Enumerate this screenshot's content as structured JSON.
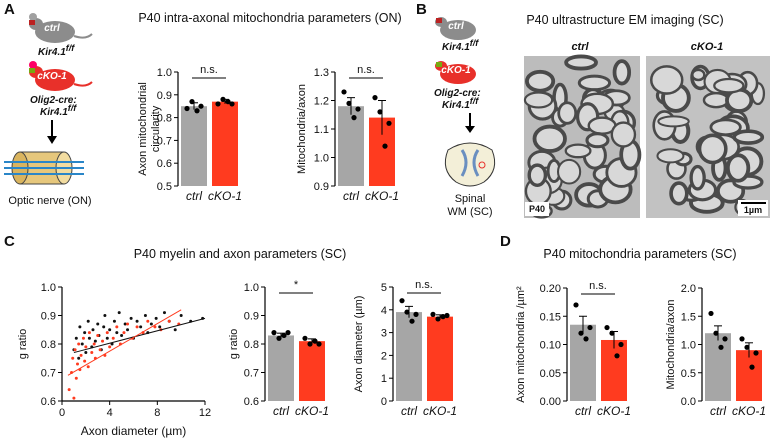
{
  "panel_a": {
    "letter": "A",
    "title": "P40 intra-axonal mitochondria parameters (ON)",
    "ctrl_label": "ctrl",
    "ctrl_genotype": "Kir4.1",
    "ctrl_genotype_sup": "f/f",
    "cko_label": "cKO-1",
    "cko_genotype_1": "Olig2-cre:",
    "cko_genotype_2": "Kir4.1",
    "cko_genotype_sup": "f/f",
    "tissue": "Optic nerve (ON)"
  },
  "panel_b": {
    "letter": "B",
    "title": "P40 ultrastructure EM imaging (SC)",
    "ctrl_label": "ctrl",
    "ctrl_genotype": "Kir4.1",
    "ctrl_genotype_sup": "f/f",
    "cko_label": "cKO-1",
    "cko_genotype_1": "Olig2-cre:",
    "cko_genotype_2": "Kir4.1",
    "cko_genotype_sup": "f/f",
    "tissue_1": "Spinal",
    "tissue_2": "WM (SC)",
    "em_ctrl": "ctrl",
    "em_cko": "cKO-1",
    "em_age": "P40",
    "scale_bar": "1µm"
  },
  "panel_c": {
    "letter": "C",
    "title": "P40 myelin and axon parameters (SC)"
  },
  "panel_d": {
    "letter": "D",
    "title": "P40 mitochondria parameters (SC)"
  },
  "chart_data": [
    {
      "type": "bar",
      "ylabel": [
        "Axon mitochondrial",
        "circularity"
      ],
      "categories": [
        "ctrl",
        "cKO-1"
      ],
      "values": [
        0.85,
        0.87
      ],
      "errors": [
        0.015,
        0.01
      ],
      "points": [
        [
          0.84,
          0.87,
          0.83,
          0.85
        ],
        [
          0.86,
          0.88,
          0.87,
          0.86
        ]
      ],
      "colors": [
        "#a6a6a6",
        "#ff3b1f"
      ],
      "ylim": [
        0.5,
        1
      ],
      "yticks": [
        0.5,
        0.6,
        0.7,
        0.8,
        0.9,
        {
          "value": 1,
          "label": "1.0"
        }
      ],
      "annotation": "n.s."
    },
    {
      "type": "bar",
      "ylabel": [
        "Mitochondria/axon"
      ],
      "categories": [
        "ctrl",
        "cKO-1"
      ],
      "values": [
        1.18,
        1.14
      ],
      "errors": [
        0.03,
        0.06
      ],
      "points": [
        [
          1.23,
          1.19,
          1.14,
          1.17
        ],
        [
          1.21,
          1.16,
          1.04,
          1.12
        ]
      ],
      "colors": [
        "#a6a6a6",
        "#ff3b1f"
      ],
      "ylim": [
        0.9,
        1.3
      ],
      "yticks": [
        0.9,
        {
          "value": 1,
          "label": "1.0"
        },
        1.1,
        1.2,
        1.3
      ],
      "annotation": "n.s."
    },
    {
      "type": "scatter",
      "xlabel": "Axon diameter (µm)",
      "ylabel": [
        "g ratio"
      ],
      "xlim": [
        0,
        12
      ],
      "xticks": [
        0,
        4,
        8,
        12
      ],
      "ylim": [
        0.6,
        1
      ],
      "yticks": [
        0.6,
        0.7,
        0.8,
        0.9,
        {
          "value": 1,
          "label": "1.0"
        }
      ],
      "series": [
        {
          "color": "#111111",
          "x": [
            1.0,
            1.2,
            1.4,
            1.5,
            1.7,
            1.9,
            2.0,
            2.2,
            2.3,
            2.5,
            2.6,
            2.8,
            3.0,
            3.1,
            3.3,
            3.5,
            3.6,
            3.8,
            4.0,
            4.2,
            4.4,
            4.6,
            4.8,
            5.0,
            5.3,
            5.5,
            5.8,
            6.0,
            6.3,
            6.6,
            7.0,
            7.2,
            7.5,
            7.9,
            8.2,
            8.6,
            9.0,
            9.5,
            10.0,
            10.8,
            11.8
          ],
          "values": [
            0.78,
            0.82,
            0.75,
            0.86,
            0.8,
            0.84,
            0.77,
            0.88,
            0.82,
            0.79,
            0.85,
            0.81,
            0.87,
            0.83,
            0.78,
            0.86,
            0.9,
            0.82,
            0.85,
            0.8,
            0.88,
            0.84,
            0.91,
            0.83,
            0.87,
            0.85,
            0.89,
            0.82,
            0.88,
            0.86,
            0.9,
            0.84,
            0.87,
            0.89,
            0.86,
            0.91,
            0.88,
            0.85,
            0.9,
            0.88,
            0.89
          ],
          "fit": {
            "x": [
              1,
              12
            ],
            "values": [
              0.77,
              0.89
            ]
          }
        },
        {
          "color": "#ff3b1f",
          "x": [
            0.6,
            0.8,
            0.9,
            1.0,
            1.1,
            1.2,
            1.3,
            1.4,
            1.5,
            1.6,
            1.8,
            1.9,
            2.0,
            2.2,
            2.3,
            2.5,
            2.7,
            2.8,
            3.0,
            3.2,
            3.4,
            3.6,
            3.8,
            4.0,
            4.3,
            4.6,
            4.9,
            5.2,
            5.5,
            5.9,
            6.3,
            6.8,
            7.2,
            7.8,
            8.3,
            9.0,
            9.8
          ],
          "values": [
            0.64,
            0.7,
            0.75,
            0.61,
            0.78,
            0.68,
            0.73,
            0.8,
            0.71,
            0.76,
            0.82,
            0.74,
            0.79,
            0.72,
            0.84,
            0.77,
            0.8,
            0.75,
            0.83,
            0.78,
            0.81,
            0.76,
            0.84,
            0.79,
            0.82,
            0.86,
            0.8,
            0.84,
            0.87,
            0.82,
            0.86,
            0.84,
            0.88,
            0.86,
            0.85,
            0.88,
            0.87
          ],
          "fit": {
            "x": [
              0.5,
              10
            ],
            "values": [
              0.69,
              0.92
            ]
          }
        }
      ]
    },
    {
      "type": "bar",
      "ylabel": [
        "g ratio"
      ],
      "categories": [
        "ctrl",
        "cKO-1"
      ],
      "values": [
        0.83,
        0.81
      ],
      "errors": [
        0.008,
        0.008
      ],
      "points": [
        [
          0.84,
          0.82,
          0.83,
          0.84
        ],
        [
          0.82,
          0.8,
          0.81,
          0.8
        ]
      ],
      "colors": [
        "#a6a6a6",
        "#ff3b1f"
      ],
      "ylim": [
        0.6,
        1
      ],
      "yticks": [
        0.6,
        0.7,
        0.8,
        0.9,
        {
          "value": 1,
          "label": "1.0"
        }
      ],
      "annotation": "*"
    },
    {
      "type": "bar",
      "ylabel": [
        "Axon diameter (µm)"
      ],
      "categories": [
        "ctrl",
        "cKO-1"
      ],
      "values": [
        3.9,
        3.7
      ],
      "errors": [
        0.25,
        0.08
      ],
      "points": [
        [
          4.4,
          3.9,
          3.5,
          3.8
        ],
        [
          3.8,
          3.6,
          3.7,
          3.75
        ]
      ],
      "colors": [
        "#a6a6a6",
        "#ff3b1f"
      ],
      "ylim": [
        0,
        5
      ],
      "yticks": [
        0,
        1,
        2,
        3,
        4,
        5
      ],
      "annotation": "n.s."
    },
    {
      "type": "bar",
      "ylabel": [
        "Axon mitochondria /µm²"
      ],
      "categories": [
        "ctrl",
        "cKO-1"
      ],
      "values": [
        0.135,
        0.108
      ],
      "errors": [
        0.015,
        0.015
      ],
      "points": [
        [
          0.17,
          0.12,
          0.11,
          0.13
        ],
        [
          0.13,
          0.12,
          0.08,
          0.1
        ]
      ],
      "colors": [
        "#a6a6a6",
        "#ff3b1f"
      ],
      "ylim": [
        0,
        0.2
      ],
      "yticks": [
        {
          "value": 0,
          "label": "0.00"
        },
        0.05,
        {
          "value": 0.1,
          "label": "0.10"
        },
        0.15,
        {
          "value": 0.2,
          "label": "0.20"
        }
      ],
      "annotation": "n.s."
    },
    {
      "type": "bar",
      "ylabel": [
        "Mitochondria/axon"
      ],
      "categories": [
        "ctrl",
        "cKO-1"
      ],
      "values": [
        1.2,
        0.9
      ],
      "errors": [
        0.13,
        0.13
      ],
      "points": [
        [
          1.55,
          1.2,
          0.95,
          1.1
        ],
        [
          1.1,
          0.95,
          0.6,
          0.85
        ]
      ],
      "colors": [
        "#a6a6a6",
        "#ff3b1f"
      ],
      "ylim": [
        0,
        2
      ],
      "yticks": [
        {
          "value": 0,
          "label": "0.0"
        },
        0.5,
        {
          "value": 1,
          "label": "1.0"
        },
        1.5,
        {
          "value": 2,
          "label": "2.0"
        }
      ]
    }
  ]
}
